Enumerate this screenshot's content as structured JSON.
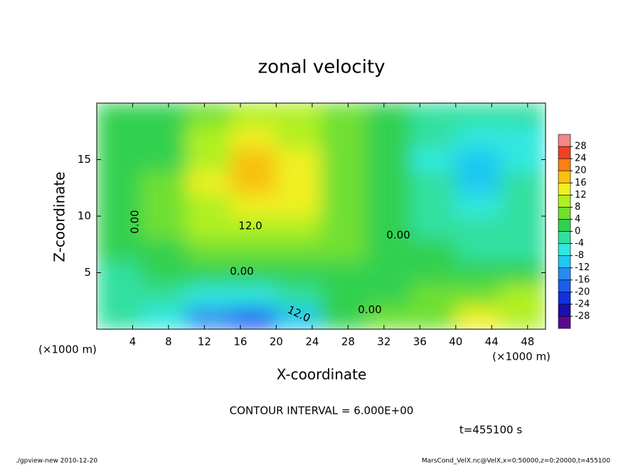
{
  "chart_data": {
    "type": "contour",
    "title": "zonal velocity",
    "x_label": "X-coordinate",
    "y_label": "Z-coordinate",
    "x_unit_label": "(×1000 m)",
    "y_unit_label": "(×1000 m)",
    "xlim": [
      0,
      50
    ],
    "ylim": [
      0,
      20
    ],
    "xticks": [
      4,
      8,
      12,
      16,
      20,
      24,
      28,
      32,
      36,
      40,
      44,
      48
    ],
    "yticks": [
      5,
      10,
      15
    ],
    "x": [
      2.5,
      7.5,
      12.5,
      17.5,
      22.5,
      27.5,
      32.5,
      37.5,
      42.5,
      47.5
    ],
    "z": [
      1,
      3,
      5,
      7,
      9,
      11,
      13,
      15,
      17,
      19
    ],
    "values": [
      [
        -2,
        -6,
        -16,
        -18,
        -12,
        0,
        4,
        6,
        14,
        8
      ],
      [
        -2,
        -4,
        -8,
        -8,
        -4,
        0,
        2,
        4,
        4,
        8
      ],
      [
        -2,
        0,
        0,
        0,
        0,
        0,
        0,
        0,
        2,
        2
      ],
      [
        0,
        2,
        6,
        6,
        6,
        4,
        2,
        0,
        -2,
        -2
      ],
      [
        0,
        4,
        8,
        10,
        10,
        6,
        0,
        -2,
        -4,
        -2
      ],
      [
        0,
        4,
        10,
        14,
        12,
        6,
        0,
        -2,
        -6,
        -4
      ],
      [
        2,
        4,
        12,
        17,
        13,
        5,
        0,
        -4,
        -10,
        -4
      ],
      [
        2,
        3,
        10,
        16,
        12,
        5,
        0,
        -6,
        -12,
        -6
      ],
      [
        2,
        2,
        8,
        14,
        10,
        4,
        0,
        -4,
        -8,
        -6
      ],
      [
        2,
        2,
        6,
        10,
        8,
        4,
        0,
        -2,
        -4,
        -4
      ]
    ],
    "clim": [
      -32,
      32
    ],
    "levels": [
      -28,
      -24,
      -20,
      -16,
      -12,
      -8,
      -4,
      0,
      4,
      8,
      12,
      16,
      20,
      24,
      28
    ],
    "colors": [
      "#5a0a8c",
      "#1a10b0",
      "#1030e0",
      "#1a5cf0",
      "#2a8af0",
      "#1ec8f0",
      "#30e8e0",
      "#30e0a0",
      "#30d050",
      "#70e030",
      "#b0f020",
      "#f0f020",
      "#f8c010",
      "#f88010",
      "#f04020",
      "#f08888"
    ],
    "contour_labels": [
      "12.0",
      "0.00",
      "0.00",
      "0.00",
      "0.00",
      "12.0"
    ],
    "contour_interval": "CONTOUR INTERVAL = 6.000E+00",
    "time_label": "t=455100 s",
    "footer_left": "./gpview-new   2010-12-20",
    "footer_right": "MarsCond_VelX.nc@VelX,x=0:50000,z=0:20000,t=455100"
  }
}
